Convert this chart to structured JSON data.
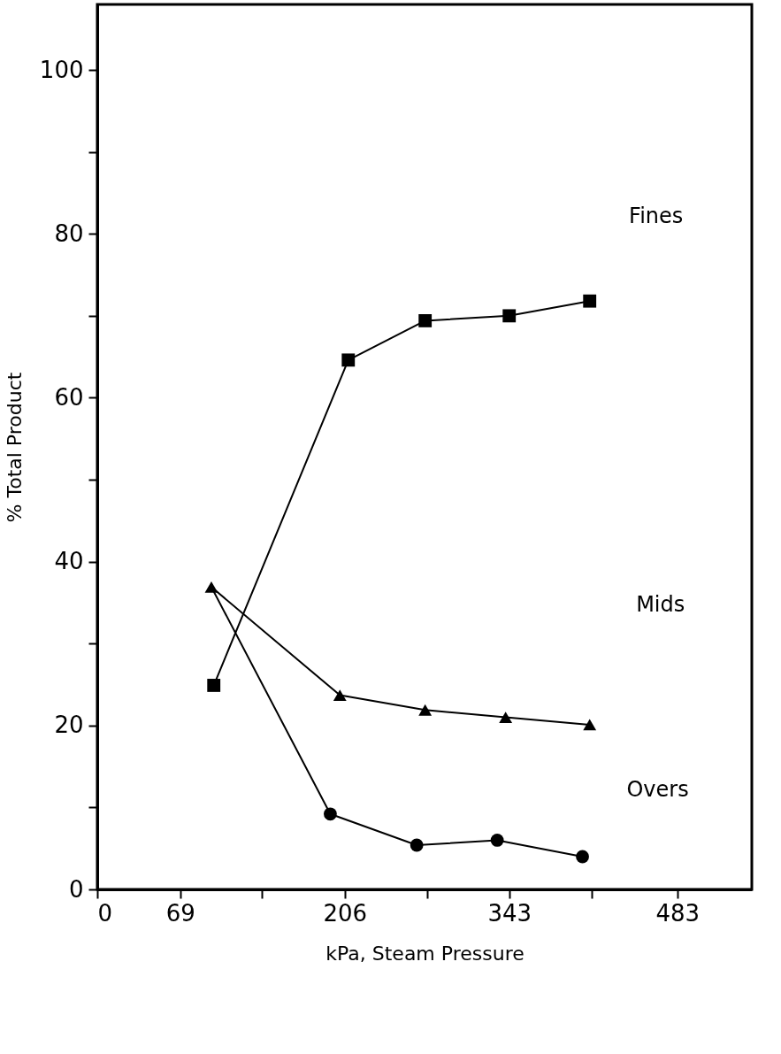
{
  "chart_data": {
    "type": "line",
    "xlabel": "kPa, Steam Pressure",
    "ylabel": "% Total Product",
    "xlim": [
      0,
      545
    ],
    "ylim": [
      0,
      108
    ],
    "xticks": [
      0,
      69,
      {
        "value": 137,
        "label": null
      },
      206,
      {
        "value": 275,
        "label": null
      },
      343,
      {
        "value": 412,
        "label": null
      },
      483
    ],
    "yticks": [
      0,
      {
        "value": 10,
        "label": null
      },
      20,
      {
        "value": 30,
        "label": null
      },
      40,
      {
        "value": 50,
        "label": null
      },
      60,
      {
        "value": 70,
        "label": null
      },
      80,
      {
        "value": 90,
        "label": null
      },
      100
    ],
    "grid": false,
    "line_style": "solid",
    "series": [
      {
        "name": "Fines",
        "color": "#000000",
        "marker": "square",
        "x": [
          97,
          209,
          273,
          343,
          410
        ],
        "values": [
          24.9,
          64.6,
          69.4,
          70.0,
          71.8
        ]
      },
      {
        "name": "Mids",
        "color": "#000000",
        "marker": "triangle",
        "x": [
          95,
          202,
          273,
          340,
          410
        ],
        "values": [
          36.9,
          23.7,
          21.9,
          21.0,
          20.1
        ]
      },
      {
        "name": "Overs",
        "color": "#000000",
        "marker": "circle",
        "x": [
          95,
          194,
          266,
          333,
          404
        ],
        "values": [
          36.9,
          9.2,
          5.4,
          6.0,
          4.0
        ]
      }
    ]
  }
}
